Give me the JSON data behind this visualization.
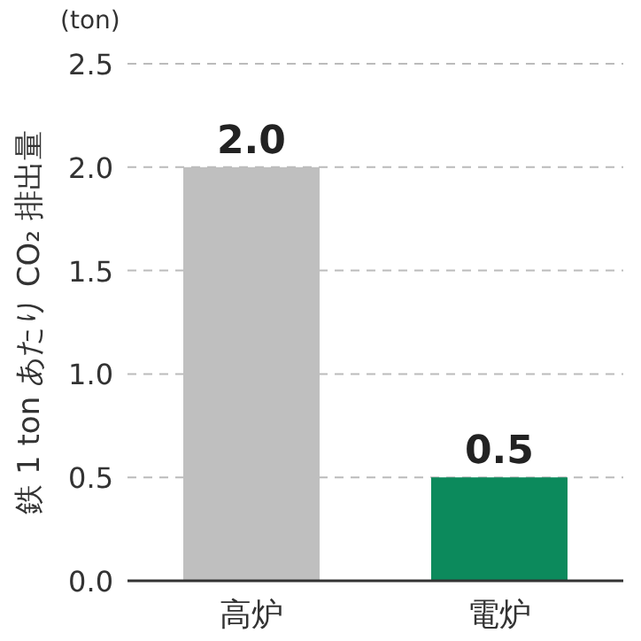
{
  "chart_data": {
    "type": "bar",
    "ylabel": "鉄 1 ton あたり CO₂ 排出量",
    "annotations": [
      "(ton)"
    ],
    "categories": [
      "高炉",
      "電炉"
    ],
    "values": [
      2.0,
      0.5
    ],
    "colors": [
      "#bfbfbf",
      "#0c8a5c"
    ],
    "value_labels": [
      "2.0",
      "0.5"
    ],
    "ylim": [
      0,
      2.5
    ],
    "yticks": [
      {
        "value": 0,
        "label": "0.0"
      },
      {
        "value": 0.5,
        "label": "0.5"
      },
      {
        "value": 1,
        "label": "1.0"
      },
      {
        "value": 1.5,
        "label": "1.5"
      },
      {
        "value": 2,
        "label": "2.0"
      },
      {
        "value": 2.5,
        "label": "2.5"
      }
    ],
    "grid": "y"
  }
}
